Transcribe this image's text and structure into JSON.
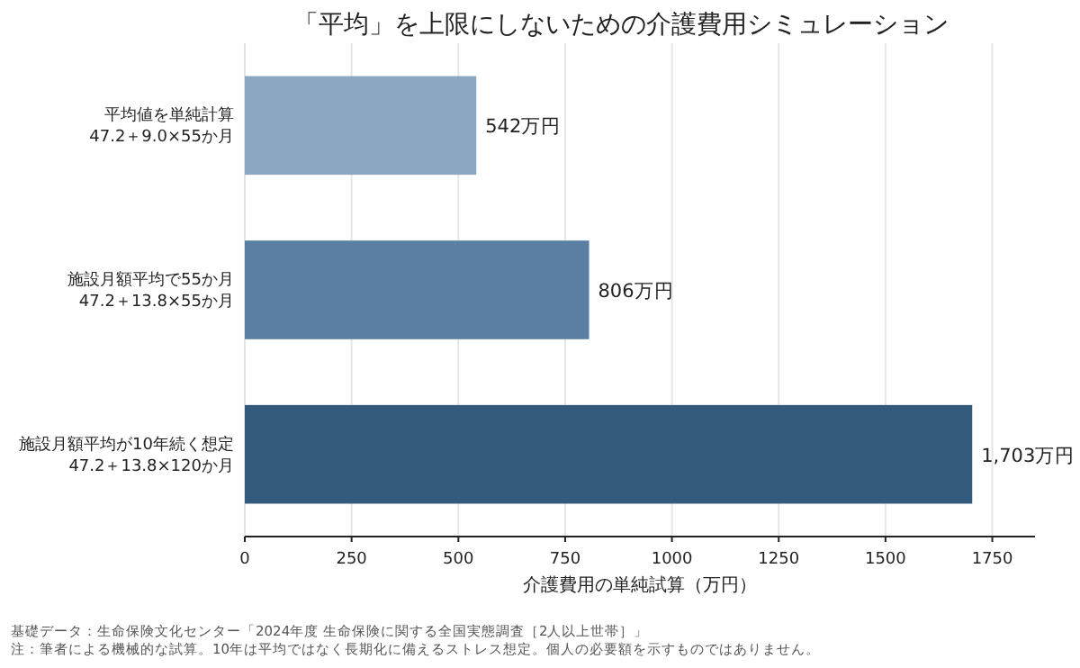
{
  "chart_data": {
    "type": "bar",
    "orientation": "horizontal",
    "title": "「平均」を上限にしないための介護費用シミュレーション",
    "categories": [
      "平均値を単純計算\n47.2＋9.0×55か月",
      "施設月額平均で55か月\n47.2＋13.8×55か月",
      "施設月額平均が10年続く想定\n47.2＋13.8×120か月"
    ],
    "values": [
      542,
      806,
      1703
    ],
    "value_labels": [
      "542万円",
      "806万円",
      "1,703万円"
    ],
    "colors": [
      "#8ba7c1",
      "#5b7fa2",
      "#345a7b"
    ],
    "xlabel": "介護費用の単純試算（万円）",
    "xlim": [
      0,
      1850
    ],
    "xticks": [
      0,
      250,
      500,
      750,
      1000,
      1250,
      1500,
      1750
    ],
    "grid": "x",
    "annotations": [
      "基礎データ：生命保険文化センター「2024年度 生命保険に関する全国実態調査［2人以上世帯］」",
      "注：筆者による機械的な試算。10年は平均ではなく長期化に備えるストレス想定。個人の必要額を示すものではありません。"
    ]
  }
}
